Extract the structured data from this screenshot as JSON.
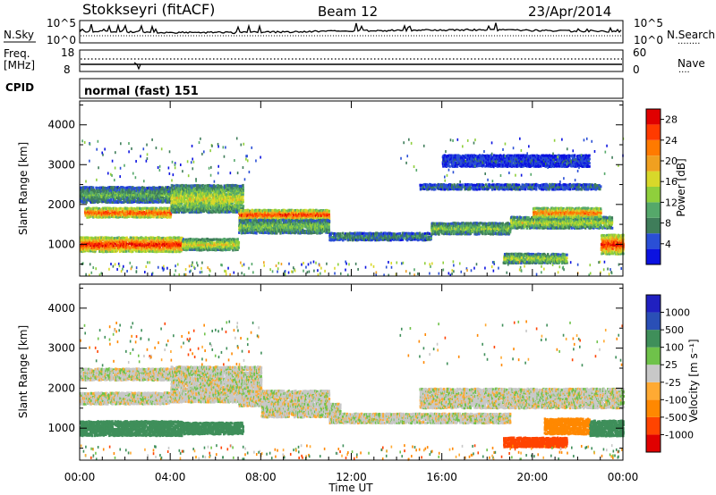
{
  "header": {
    "station": "Stokkseyri (fitACF)",
    "beam": "Beam 12",
    "date": "23/Apr/2014"
  },
  "top_panel": {
    "left_label": "N.Sky",
    "left_ticks": [
      "10^5",
      "10^0"
    ],
    "right_ticks": [
      "10^5",
      "10^0"
    ],
    "right_label": "N.Search",
    "right_legend": "········"
  },
  "freq_panel": {
    "label_line1": "Freq.",
    "label_line2": "[MHz]",
    "left_ticks": [
      "18",
      "8"
    ],
    "right_ticks": [
      "60",
      "0"
    ],
    "right_label": "Nave",
    "right_legend": "····"
  },
  "cpid": {
    "label": "CPID",
    "value": "normal (fast) 151"
  },
  "colors": {
    "power": [
      "#0b12e0",
      "#2a4fd6",
      "#3f7d5a",
      "#55a86a",
      "#8fcf3c",
      "#d8d82a",
      "#f0a020",
      "#ff7a00",
      "#ff3a00",
      "#e00000"
    ],
    "velocity": [
      "#e00000",
      "#ff4400",
      "#ff8800",
      "#ffaa33",
      "#c8c8c8",
      "#c8c8c8",
      "#6fc24a",
      "#3f8f5a",
      "#2a4fb6",
      "#2020c0"
    ]
  },
  "chart_data": [
    {
      "type": "heatmap",
      "title": "",
      "ylabel": "Slant Range [km]",
      "xlabel": "",
      "y_ticks": [
        "1000",
        "2000",
        "3000",
        "4000"
      ],
      "ylim": [
        200,
        4600
      ],
      "xlim": [
        0,
        24
      ],
      "colorbar": {
        "label": "Power [dB]",
        "ticks": [
          "4",
          "8",
          "12",
          "16",
          "20",
          "24",
          "28"
        ],
        "range": [
          0,
          30
        ]
      },
      "bands": [
        {
          "t_start": 0.0,
          "t_end": 4.5,
          "range_center": 1000,
          "range_width": 380,
          "value": 26
        },
        {
          "t_start": 4.5,
          "t_end": 7.0,
          "range_center": 1000,
          "range_width": 300,
          "value": 16
        },
        {
          "t_start": 0.2,
          "t_end": 4.0,
          "range_center": 1800,
          "range_width": 250,
          "value": 24
        },
        {
          "t_start": 0.0,
          "t_end": 4.0,
          "range_center": 2250,
          "range_width": 400,
          "value": 10
        },
        {
          "t_start": 4.0,
          "t_end": 7.2,
          "range_center": 2150,
          "range_width": 700,
          "value": 15
        },
        {
          "t_start": 7.0,
          "t_end": 11.0,
          "range_center": 1750,
          "range_width": 250,
          "value": 25
        },
        {
          "t_start": 7.0,
          "t_end": 11.0,
          "range_center": 1450,
          "range_width": 350,
          "value": 12
        },
        {
          "t_start": 11.0,
          "t_end": 15.5,
          "range_center": 1200,
          "range_width": 200,
          "value": 8
        },
        {
          "t_start": 15.5,
          "t_end": 19.0,
          "range_center": 1400,
          "range_width": 300,
          "value": 12
        },
        {
          "t_start": 19.0,
          "t_end": 23.5,
          "range_center": 1550,
          "range_width": 300,
          "value": 14
        },
        {
          "t_start": 20.0,
          "t_end": 23.0,
          "range_center": 1800,
          "range_width": 250,
          "value": 22
        },
        {
          "t_start": 18.7,
          "t_end": 21.5,
          "range_center": 650,
          "range_width": 250,
          "value": 14
        },
        {
          "t_start": 23.0,
          "t_end": 24.0,
          "range_center": 1000,
          "range_width": 500,
          "value": 25
        },
        {
          "t_start": 15.0,
          "t_end": 23.0,
          "range_center": 2450,
          "range_width": 150,
          "value": 6
        },
        {
          "t_start": 16.0,
          "t_end": 22.5,
          "range_center": 3100,
          "range_width": 300,
          "value": 4
        }
      ]
    },
    {
      "type": "heatmap",
      "title": "",
      "ylabel": "Slant Range [km]",
      "xlabel": "Time UT",
      "x_ticks": [
        "00:00",
        "04:00",
        "08:00",
        "12:00",
        "16:00",
        "20:00",
        "00:00"
      ],
      "y_ticks": [
        "1000",
        "2000",
        "3000",
        "4000"
      ],
      "ylim": [
        200,
        4600
      ],
      "xlim": [
        0,
        24
      ],
      "colorbar": {
        "label": "Velocity [m s⁻¹]",
        "ticks": [
          "1000",
          "500",
          "100",
          "25",
          "-25",
          "-100",
          "-500",
          "-1000"
        ]
      },
      "bands": [
        {
          "t_start": 0.0,
          "t_end": 4.5,
          "range_center": 1000,
          "range_width": 380,
          "value": 300
        },
        {
          "t_start": 4.5,
          "t_end": 7.2,
          "range_center": 1000,
          "range_width": 300,
          "value": 150
        },
        {
          "t_start": 0.0,
          "t_end": 4.0,
          "range_center": 2350,
          "range_width": 300,
          "value": 0
        },
        {
          "t_start": 0.0,
          "t_end": 4.0,
          "range_center": 1750,
          "range_width": 300,
          "value": 0
        },
        {
          "t_start": 4.0,
          "t_end": 8.0,
          "range_center": 2100,
          "range_width": 900,
          "value": 0
        },
        {
          "t_start": 7.0,
          "t_end": 11.0,
          "range_center": 1750,
          "range_width": 400,
          "value": 0
        },
        {
          "t_start": 8.0,
          "t_end": 11.5,
          "range_center": 1450,
          "range_width": 350,
          "value": 0
        },
        {
          "t_start": 11.0,
          "t_end": 19.0,
          "range_center": 1250,
          "range_width": 250,
          "value": 0
        },
        {
          "t_start": 15.0,
          "t_end": 24.0,
          "range_center": 1750,
          "range_width": 500,
          "value": 0
        },
        {
          "t_start": 18.7,
          "t_end": 21.5,
          "range_center": 650,
          "range_width": 250,
          "value": -300
        },
        {
          "t_start": 20.5,
          "t_end": 22.5,
          "range_center": 1050,
          "range_width": 400,
          "value": -200
        },
        {
          "t_start": 22.5,
          "t_end": 24.0,
          "range_center": 1000,
          "range_width": 400,
          "value": 200
        }
      ]
    }
  ]
}
